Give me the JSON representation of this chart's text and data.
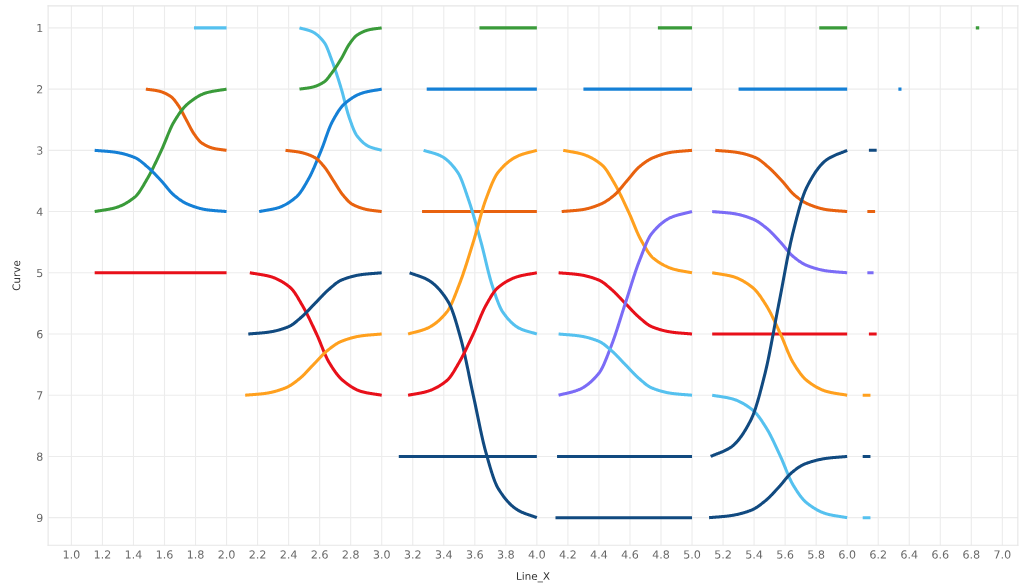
{
  "chart_data": {
    "type": "line",
    "xlabel": "Line_X",
    "ylabel": "Curve",
    "xlim": [
      0.85,
      7.1
    ],
    "ylim": [
      9.45,
      0.64
    ],
    "xticks": [
      {
        "value": 1,
        "label": "1.0"
      },
      {
        "value": 1.2,
        "label": "1.2"
      },
      {
        "value": 1.4,
        "label": "1.4"
      },
      {
        "value": 1.6,
        "label": "1.6"
      },
      {
        "value": 1.8,
        "label": "1.8"
      },
      {
        "value": 2,
        "label": "2.0"
      },
      {
        "value": 2.2,
        "label": "2.2"
      },
      {
        "value": 2.4,
        "label": "2.4"
      },
      {
        "value": 2.6,
        "label": "2.6"
      },
      {
        "value": 2.8,
        "label": "2.8"
      },
      {
        "value": 3,
        "label": "3.0"
      },
      {
        "value": 3.2,
        "label": "3.2"
      },
      {
        "value": 3.4,
        "label": "3.4"
      },
      {
        "value": 3.6,
        "label": "3.6"
      },
      {
        "value": 3.8,
        "label": "3.8"
      },
      {
        "value": 4,
        "label": "4.0"
      },
      {
        "value": 4.2,
        "label": "4.2"
      },
      {
        "value": 4.4,
        "label": "4.4"
      },
      {
        "value": 4.6,
        "label": "4.6"
      },
      {
        "value": 4.8,
        "label": "4.8"
      },
      {
        "value": 5,
        "label": "5.0"
      },
      {
        "value": 5.2,
        "label": "5.2"
      },
      {
        "value": 5.4,
        "label": "5.4"
      },
      {
        "value": 5.6,
        "label": "5.6"
      },
      {
        "value": 5.8,
        "label": "5.8"
      },
      {
        "value": 6,
        "label": "6.0"
      },
      {
        "value": 6.2,
        "label": "6.2"
      },
      {
        "value": 6.4,
        "label": "6.4"
      },
      {
        "value": 6.6,
        "label": "6.6"
      },
      {
        "value": 6.8,
        "label": "6.8"
      },
      {
        "value": 7,
        "label": "7.0"
      }
    ],
    "yticks": [
      1,
      2,
      3,
      4,
      5,
      6,
      7,
      8,
      9
    ],
    "grid": true,
    "series": [
      {
        "color": "#55c1ef",
        "x": [
          1.79,
          2.0
        ],
        "values": [
          1,
          1
        ]
      },
      {
        "color": "#e8620f",
        "x": [
          1.48,
          1.56,
          1.64,
          1.69,
          1.74,
          1.79,
          1.84,
          1.92,
          2.0
        ],
        "values": [
          2,
          2.03,
          2.12,
          2.27,
          2.5,
          2.73,
          2.88,
          2.97,
          3
        ]
      },
      {
        "color": "#3a9b3a",
        "x": [
          1.15,
          1.28,
          1.41,
          1.49,
          1.58,
          1.66,
          1.75,
          1.87,
          2.0
        ],
        "values": [
          4,
          3.94,
          3.76,
          3.46,
          3,
          2.54,
          2.24,
          2.06,
          2
        ]
      },
      {
        "color": "#1580d6",
        "x": [
          1.15,
          1.28,
          1.41,
          1.49,
          1.58,
          1.66,
          1.75,
          1.87,
          2.0
        ],
        "values": [
          3,
          3.03,
          3.12,
          3.27,
          3.5,
          3.73,
          3.88,
          3.97,
          4
        ]
      },
      {
        "color": "#e8101a",
        "x": [
          1.15,
          2.0
        ],
        "values": [
          5,
          5
        ]
      },
      {
        "color": "#55c1ef",
        "x": [
          2.47,
          2.55,
          2.63,
          2.68,
          2.74,
          2.79,
          2.84,
          2.92,
          3.0
        ],
        "values": [
          1,
          1.06,
          1.24,
          1.54,
          2,
          2.46,
          2.76,
          2.94,
          3
        ]
      },
      {
        "color": "#3a9b3a",
        "x": [
          2.47,
          2.55,
          2.63,
          2.68,
          2.74,
          2.79,
          2.84,
          2.92,
          3.0
        ],
        "values": [
          2,
          1.97,
          1.88,
          1.73,
          1.5,
          1.27,
          1.12,
          1.03,
          1
        ]
      },
      {
        "color": "#1580d6",
        "x": [
          2.21,
          2.33,
          2.45,
          2.53,
          2.61,
          2.68,
          2.76,
          2.88,
          3.0
        ],
        "values": [
          4,
          3.94,
          3.76,
          3.46,
          3,
          2.54,
          2.24,
          2.06,
          2
        ]
      },
      {
        "color": "#e8620f",
        "x": [
          2.38,
          2.47,
          2.57,
          2.63,
          2.69,
          2.75,
          2.81,
          2.91,
          3.0
        ],
        "values": [
          3,
          3.03,
          3.12,
          3.27,
          3.5,
          3.73,
          3.88,
          3.97,
          4
        ]
      },
      {
        "color": "#e8101a",
        "x": [
          2.15,
          2.28,
          2.41,
          2.49,
          2.58,
          2.66,
          2.75,
          2.87,
          3.0
        ],
        "values": [
          5,
          5.06,
          5.24,
          5.54,
          6,
          6.46,
          6.76,
          6.94,
          7
        ]
      },
      {
        "color": "#114a80",
        "x": [
          2.14,
          2.27,
          2.4,
          2.48,
          2.57,
          2.66,
          2.74,
          2.87,
          3.0
        ],
        "values": [
          6,
          5.97,
          5.88,
          5.73,
          5.5,
          5.27,
          5.12,
          5.03,
          5
        ]
      },
      {
        "color": "#ffa01e",
        "x": [
          2.12,
          2.25,
          2.38,
          2.47,
          2.56,
          2.65,
          2.74,
          2.87,
          3.0
        ],
        "values": [
          7,
          6.97,
          6.88,
          6.73,
          6.5,
          6.27,
          6.12,
          6.03,
          6
        ]
      },
      {
        "color": "#3a9b3a",
        "x": [
          3.63,
          4.0
        ],
        "values": [
          1,
          1
        ]
      },
      {
        "color": "#1580d6",
        "x": [
          3.29,
          4.0
        ],
        "values": [
          2,
          2
        ]
      },
      {
        "color": "#e8620f",
        "x": [
          3.26,
          4.0
        ],
        "values": [
          4,
          4
        ]
      },
      {
        "color": "#114a80",
        "x": [
          3.11,
          4.0
        ],
        "values": [
          8,
          8
        ]
      },
      {
        "color": "#55c1ef",
        "x": [
          3.27,
          3.38,
          3.49,
          3.56,
          3.64,
          3.71,
          3.78,
          3.89,
          4.0
        ],
        "values": [
          3,
          3.09,
          3.36,
          3.81,
          4.5,
          5.19,
          5.64,
          5.91,
          6
        ]
      },
      {
        "color": "#ffa01e",
        "x": [
          3.17,
          3.29,
          3.42,
          3.5,
          3.59,
          3.67,
          3.75,
          3.88,
          4.0
        ],
        "values": [
          6,
          5.91,
          5.64,
          5.19,
          4.5,
          3.81,
          3.36,
          3.09,
          3
        ]
      },
      {
        "color": "#114a80",
        "x": [
          3.18,
          3.3,
          3.43,
          3.51,
          3.59,
          3.67,
          3.75,
          3.88,
          4.0
        ],
        "values": [
          5,
          5.12,
          5.48,
          6.08,
          7,
          7.92,
          8.52,
          8.88,
          9
        ]
      },
      {
        "color": "#e8101a",
        "x": [
          3.17,
          3.29,
          3.42,
          3.5,
          3.59,
          3.67,
          3.75,
          3.88,
          4.0
        ],
        "values": [
          7,
          6.94,
          6.76,
          6.46,
          6,
          5.54,
          5.24,
          5.06,
          5
        ]
      },
      {
        "color": "#3a9b3a",
        "x": [
          4.78,
          5.0
        ],
        "values": [
          1,
          1
        ]
      },
      {
        "color": "#1580d6",
        "x": [
          4.3,
          5.0
        ],
        "values": [
          2,
          2
        ]
      },
      {
        "color": "#114a80",
        "x": [
          4.13,
          5.0
        ],
        "values": [
          8,
          8
        ]
      },
      {
        "color": "#114a80",
        "x": [
          4.12,
          5.0
        ],
        "values": [
          9,
          9
        ]
      },
      {
        "color": "#ffa01e",
        "x": [
          4.17,
          4.29,
          4.42,
          4.5,
          4.59,
          4.67,
          4.75,
          4.88,
          5.0
        ],
        "values": [
          3,
          3.06,
          3.24,
          3.54,
          4,
          4.46,
          4.76,
          4.94,
          5
        ]
      },
      {
        "color": "#e8620f",
        "x": [
          4.16,
          4.29,
          4.41,
          4.5,
          4.58,
          4.66,
          4.75,
          4.87,
          5.0
        ],
        "values": [
          4,
          3.97,
          3.88,
          3.73,
          3.5,
          3.27,
          3.12,
          3.03,
          3
        ]
      },
      {
        "color": "#e8101a",
        "x": [
          4.14,
          4.27,
          4.4,
          4.48,
          4.57,
          4.66,
          4.74,
          4.87,
          5.0
        ],
        "values": [
          5,
          5.03,
          5.12,
          5.27,
          5.5,
          5.73,
          5.88,
          5.97,
          6
        ]
      },
      {
        "color": "#7b6cf6",
        "x": [
          4.14,
          4.27,
          4.4,
          4.48,
          4.57,
          4.66,
          4.74,
          4.87,
          5.0
        ],
        "values": [
          7,
          6.91,
          6.64,
          6.19,
          5.5,
          4.81,
          4.36,
          4.09,
          4
        ]
      },
      {
        "color": "#55c1ef",
        "x": [
          4.14,
          4.27,
          4.4,
          4.48,
          4.57,
          4.66,
          4.74,
          4.87,
          5.0
        ],
        "values": [
          6,
          6.03,
          6.12,
          6.27,
          6.5,
          6.73,
          6.88,
          6.97,
          7
        ]
      },
      {
        "color": "#3a9b3a",
        "x": [
          5.82,
          6.0
        ],
        "values": [
          1,
          1
        ]
      },
      {
        "color": "#1580d6",
        "x": [
          5.3,
          6.0
        ],
        "values": [
          2,
          2
        ]
      },
      {
        "color": "#e8101a",
        "x": [
          5.13,
          6.0
        ],
        "values": [
          6,
          6
        ]
      },
      {
        "color": "#e8620f",
        "x": [
          5.15,
          5.28,
          5.41,
          5.49,
          5.58,
          5.66,
          5.75,
          5.87,
          6.0
        ],
        "values": [
          3,
          3.03,
          3.12,
          3.27,
          3.5,
          3.73,
          3.88,
          3.97,
          4
        ]
      },
      {
        "color": "#7b6cf6",
        "x": [
          5.13,
          5.26,
          5.39,
          5.48,
          5.57,
          5.65,
          5.74,
          5.87,
          6.0
        ],
        "values": [
          4,
          4.03,
          4.12,
          4.27,
          4.5,
          4.73,
          4.88,
          4.97,
          5
        ]
      },
      {
        "color": "#ffa01e",
        "x": [
          5.13,
          5.26,
          5.39,
          5.48,
          5.57,
          5.65,
          5.74,
          5.87,
          6.0
        ],
        "values": [
          5,
          5.06,
          5.24,
          5.54,
          6,
          6.46,
          6.76,
          6.94,
          7
        ]
      },
      {
        "color": "#55c1ef",
        "x": [
          5.13,
          5.26,
          5.39,
          5.48,
          5.57,
          5.65,
          5.74,
          5.87,
          6.0
        ],
        "values": [
          7,
          7.06,
          7.24,
          7.54,
          8,
          8.46,
          8.76,
          8.94,
          9
        ]
      },
      {
        "color": "#114a80",
        "x": [
          5.12,
          5.25,
          5.38,
          5.47,
          5.56,
          5.65,
          5.74,
          5.87,
          6.0
        ],
        "values": [
          8,
          7.85,
          7.4,
          6.65,
          5.5,
          4.35,
          3.6,
          3.15,
          3
        ]
      },
      {
        "color": "#114a80",
        "x": [
          5.11,
          5.24,
          5.38,
          5.47,
          5.56,
          5.64,
          5.73,
          5.87,
          6.0
        ],
        "values": [
          9,
          8.97,
          8.88,
          8.73,
          8.5,
          8.27,
          8.12,
          8.03,
          8
        ]
      },
      {
        "color": "#114a80",
        "x": [
          6.14,
          6.19
        ],
        "values": [
          3,
          3
        ]
      },
      {
        "color": "#e8620f",
        "x": [
          6.13,
          6.18
        ],
        "values": [
          4,
          4
        ]
      },
      {
        "color": "#7b6cf6",
        "x": [
          6.13,
          6.17
        ],
        "values": [
          5,
          5
        ]
      },
      {
        "color": "#e8101a",
        "x": [
          6.14,
          6.19
        ],
        "values": [
          6,
          6
        ]
      },
      {
        "color": "#ffa01e",
        "x": [
          6.1,
          6.15
        ],
        "values": [
          7,
          7
        ]
      },
      {
        "color": "#114a80",
        "x": [
          6.1,
          6.15
        ],
        "values": [
          8,
          8
        ]
      },
      {
        "color": "#55c1ef",
        "x": [
          6.1,
          6.15
        ],
        "values": [
          9,
          9
        ]
      },
      {
        "color": "#1580d6",
        "x": [
          6.33,
          6.35
        ],
        "values": [
          2,
          2
        ]
      },
      {
        "type": "scatter",
        "color": "#3a9b3a",
        "x": [
          6.84
        ],
        "values": [
          1
        ]
      }
    ]
  }
}
